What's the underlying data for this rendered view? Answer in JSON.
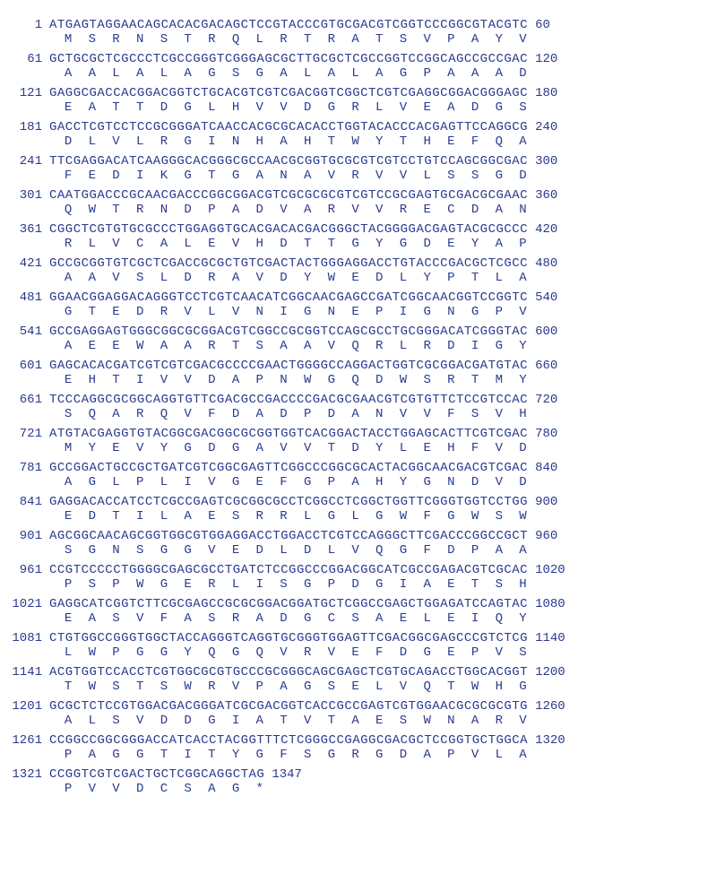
{
  "colors": {
    "text": "#2a3a8f",
    "background": "#ffffff"
  },
  "typography": {
    "font_family": "Courier New",
    "font_size_pt": 11,
    "font_weight": "normal"
  },
  "sequence": {
    "type": "dna-protein-alignment",
    "line_width_nt": 60,
    "total_length": 1347,
    "rows": [
      {
        "start": 1,
        "end": 60,
        "nuc": "ATGAGTAGGAACAGCACACGACAGCTCCGTACCCGTGCGACGTCGGTCCCGGCGTACGTC",
        "aa": " M  S  R  N  S  T  R  Q  L  R  T  R  A  T  S  V  P  A  Y  V "
      },
      {
        "start": 61,
        "end": 120,
        "nuc": "GCTGCGCTCGCCCTCGCCGGGTCGGGAGCGCTTGCGCTCGCCGGTCCGGCAGCCGCCGAC",
        "aa": " A  A  L  A  L  A  G  S  G  A  L  A  L  A  G  P  A  A  A  D "
      },
      {
        "start": 121,
        "end": 180,
        "nuc": "GAGGCGACCACGGACGGTCTGCACGTCGTCGACGGTCGGCTCGTCGAGGCGGACGGGAGC",
        "aa": " E  A  T  T  D  G  L  H  V  V  D  G  R  L  V  E  A  D  G  S "
      },
      {
        "start": 181,
        "end": 240,
        "nuc": "GACCTCGTCCTCCGCGGGATCAACCACGCGCACACCTGGTACACCCACGAGTTCCAGGCG",
        "aa": " D  L  V  L  R  G  I  N  H  A  H  T  W  Y  T  H  E  F  Q  A "
      },
      {
        "start": 241,
        "end": 300,
        "nuc": "TTCGAGGACATCAAGGGCACGGGCGCCAACGCGGTGCGCGTCGTCCTGTCCAGCGGCGAC",
        "aa": " F  E  D  I  K  G  T  G  A  N  A  V  R  V  V  L  S  S  G  D "
      },
      {
        "start": 301,
        "end": 360,
        "nuc": "CAATGGACCCGCAACGACCCGGCGGACGTCGCGCGCGTCGTCCGCGAGTGCGACGCGAAC",
        "aa": " Q  W  T  R  N  D  P  A  D  V  A  R  V  V  R  E  C  D  A  N "
      },
      {
        "start": 361,
        "end": 420,
        "nuc": "CGGCTCGTGTGCGCCCTGGAGGTGCACGACACGACGGGCTACGGGGACGAGTACGCGCCC",
        "aa": " R  L  V  C  A  L  E  V  H  D  T  T  G  Y  G  D  E  Y  A  P "
      },
      {
        "start": 421,
        "end": 480,
        "nuc": "GCCGCGGTGTCGCTCGACCGCGCTGTCGACTACTGGGAGGACCTGTACCCGACGCTCGCC",
        "aa": " A  A  V  S  L  D  R  A  V  D  Y  W  E  D  L  Y  P  T  L  A "
      },
      {
        "start": 481,
        "end": 540,
        "nuc": "GGAACGGAGGACAGGGTCCTCGTCAACATCGGCAACGAGCCGATCGGCAACGGTCCGGTC",
        "aa": " G  T  E  D  R  V  L  V  N  I  G  N  E  P  I  G  N  G  P  V "
      },
      {
        "start": 541,
        "end": 600,
        "nuc": "GCCGAGGAGTGGGCGGCGCGGACGTCGGCCGCGGTCCAGCGCCTGCGGGACATCGGGTAC",
        "aa": " A  E  E  W  A  A  R  T  S  A  A  V  Q  R  L  R  D  I  G  Y "
      },
      {
        "start": 601,
        "end": 660,
        "nuc": "GAGCACACGATCGTCGTCGACGCCCCGAACTGGGGCCAGGACTGGTCGCGGACGATGTAC",
        "aa": " E  H  T  I  V  V  D  A  P  N  W  G  Q  D  W  S  R  T  M  Y "
      },
      {
        "start": 661,
        "end": 720,
        "nuc": "TCCCAGGCGCGGCAGGTGTTCGACGCCGACCCCGACGCGAACGTCGTGTTCTCCGTCCAC",
        "aa": " S  Q  A  R  Q  V  F  D  A  D  P  D  A  N  V  V  F  S  V  H "
      },
      {
        "start": 721,
        "end": 780,
        "nuc": "ATGTACGAGGTGTACGGCGACGGCGCGGTGGTCACGGACTACCTGGAGCACTTCGTCGAC",
        "aa": " M  Y  E  V  Y  G  D  G  A  V  V  T  D  Y  L  E  H  F  V  D "
      },
      {
        "start": 781,
        "end": 840,
        "nuc": "GCCGGACTGCCGCTGATCGTCGGCGAGTTCGGCCCGGCGCACTACGGCAACGACGTCGAC",
        "aa": " A  G  L  P  L  I  V  G  E  F  G  P  A  H  Y  G  N  D  V  D "
      },
      {
        "start": 841,
        "end": 900,
        "nuc": "GAGGACACCATCCTCGCCGAGTCGCGGCGCCTCGGCCTCGGCTGGTTCGGGTGGTCCTGG",
        "aa": " E  D  T  I  L  A  E  S  R  R  L  G  L  G  W  F  G  W  S  W "
      },
      {
        "start": 901,
        "end": 960,
        "nuc": "AGCGGCAACAGCGGTGGCGTGGAGGACCTGGACCTCGTCCAGGGCTTCGACCCGGCCGCT",
        "aa": " S  G  N  S  G  G  V  E  D  L  D  L  V  Q  G  F  D  P  A  A "
      },
      {
        "start": 961,
        "end": 1020,
        "nuc": "CCGTCCCCCTGGGGCGAGCGCCTGATCTCCGGCCCGGACGGCATCGCCGAGACGTCGCAC",
        "aa": " P  S  P  W  G  E  R  L  I  S  G  P  D  G  I  A  E  T  S  H "
      },
      {
        "start": 1021,
        "end": 1080,
        "nuc": "GAGGCATCGGTCTTCGCGAGCCGCGCGGACGGATGCTCGGCCGAGCTGGAGATCCAGTAC",
        "aa": " E  A  S  V  F  A  S  R  A  D  G  C  S  A  E  L  E  I  Q  Y "
      },
      {
        "start": 1081,
        "end": 1140,
        "nuc": "CTGTGGCCGGGTGGCTACCAGGGTCAGGTGCGGGTGGAGTTCGACGGCGAGCCCGTCTCG",
        "aa": " L  W  P  G  G  Y  Q  G  Q  V  R  V  E  F  D  G  E  P  V  S "
      },
      {
        "start": 1141,
        "end": 1200,
        "nuc": "ACGTGGTCCACCTCGTGGCGCGTGCCCGCGGGCAGCGAGCTCGTGCAGACCTGGCACGGT",
        "aa": " T  W  S  T  S  W  R  V  P  A  G  S  E  L  V  Q  T  W  H  G "
      },
      {
        "start": 1201,
        "end": 1260,
        "nuc": "GCGCTCTCCGTGGACGACGGGATCGCGACGGTCACCGCCGAGTCGTGGAACGCGCGCGTG",
        "aa": " A  L  S  V  D  D  G  I  A  T  V  T  A  E  S  W  N  A  R  V "
      },
      {
        "start": 1261,
        "end": 1320,
        "nuc": "CCGGCCGGCGGGACCATCACCTACGGTTTCTCGGGCCGAGGCGACGCTCCGGTGCTGGCA",
        "aa": " P  A  G  G  T  I  T  Y  G  F  S  G  R  G  D  A  P  V  L  A "
      },
      {
        "start": 1321,
        "end": 1347,
        "nuc": "CCGGTCGTCGACTGCTCGGCAGGCTAG",
        "aa": " P  V  V  D  C  S  A  G  * "
      }
    ]
  }
}
